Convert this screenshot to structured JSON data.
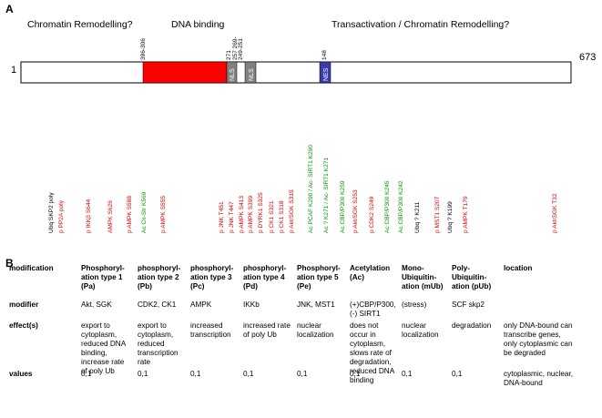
{
  "panel_a_label": "A",
  "panel_b_label": "B",
  "regions": [
    {
      "label": "Chromatin Remodelling?"
    },
    {
      "label": "DNA binding"
    },
    {
      "label": "Transactivation / Chromatin Remodelling?"
    }
  ],
  "protein": {
    "start": "1",
    "end": "673",
    "domains": [
      {
        "label": "",
        "color": "#ff0000"
      },
      {
        "label": "NLS",
        "color": "#808080"
      },
      {
        "label": "NLS",
        "color": "#808080"
      },
      {
        "label": "NES",
        "color": "#3a3aa8"
      }
    ],
    "position_labels": [
      "396-306",
      "271",
      "257 269-",
      "249-251",
      "148"
    ]
  },
  "sites": [
    {
      "label": "Ubq SKP2 poly",
      "color": "#000000"
    },
    {
      "label": "p PP2A poly",
      "color": "#e00000"
    },
    {
      "label": "p IKKβ S644",
      "color": "#e00000"
    },
    {
      "label": "AMPK S626",
      "color": "#e00000"
    },
    {
      "label": "p AMPK S588",
      "color": "#e00000"
    },
    {
      "label": "Ac Ck-Str K569",
      "color": "#009900"
    },
    {
      "label": "p AMPK S555",
      "color": "#e00000"
    },
    {
      "label": "p JNK T451",
      "color": "#e00000"
    },
    {
      "label": "p JNK T447",
      "color": "#e00000"
    },
    {
      "label": "p AMPK S413",
      "color": "#e00000"
    },
    {
      "label": "p AMPK S399",
      "color": "#e00000"
    },
    {
      "label": "p DYRK1 S325",
      "color": "#e00000"
    },
    {
      "label": "p CK1 S321",
      "color": "#e00000"
    },
    {
      "label": "p CK1 S318",
      "color": "#e00000"
    },
    {
      "label": "p Akt/SGK S315",
      "color": "#e00000"
    },
    {
      "label": "Ac PCAF K290 / Ac- SIRT1 K290",
      "color": "#009900"
    },
    {
      "label": "Ac ? K271 / Ac- SIRT1 K271",
      "color": "#009900"
    },
    {
      "label": "Ac CBP/P300 K259",
      "color": "#009900"
    },
    {
      "label": "p Akt/SGK S253",
      "color": "#e00000"
    },
    {
      "label": "p CDK2 S249",
      "color": "#e00000"
    },
    {
      "label": "Ac CBP/P300 K245",
      "color": "#009900"
    },
    {
      "label": "Ac CBP/P300 K242",
      "color": "#009900"
    },
    {
      "label": "Ubq ? K211",
      "color": "#000000"
    },
    {
      "label": "p MST1 S207",
      "color": "#e00000"
    },
    {
      "label": "Ubq ? K199",
      "color": "#000000"
    },
    {
      "label": "p AMPK T179",
      "color": "#e00000"
    },
    {
      "label": "p Akt/SGK T32",
      "color": "#e00000"
    }
  ],
  "table": {
    "headers": [
      "modification",
      "Phosphoryl-\nation type 1\n(Pa)",
      "phosphoryl-\nation type 2\n(Pb)",
      "phosphoryl-\nation type 3\n(Pc)",
      "phosphoryl-\nation type 4\n(Pd)",
      "Phosphoryl-\nation type 5\n(Pe)",
      "Acetylation\n(Ac)",
      "Mono-\nUbiquitin-\nation (mUb)",
      "Poly-\nUbiquitin-\nation (pUb)",
      "location"
    ],
    "rows": [
      {
        "label": "modifier",
        "cells": [
          "Akt, SGK",
          "CDK2, CK1",
          "AMPK",
          "IKKb",
          "JNK, MST1",
          "(+)CBP/P300,\n(-) SIRT1",
          "(stress)",
          "SCF skp2",
          ""
        ]
      },
      {
        "label": "effect(s)",
        "cells": [
          "export to\ncytoplasm,\nreduced DNA\nbinding,\nincrease rate\nof poly Ub",
          "export to\ncytoplasm,\nreduced\ntranscription\nrate",
          "increased\ntranscription",
          "increased rate\nof poly Ub",
          "nuclear\nlocalization",
          "does not\noccur in\ncytoplasm,\nslows rate of\ndegradation,\nreduced DNA\nbinding",
          "nuclear\nlocalization",
          "degradation",
          "only DNA-bound can\ntranscribe genes,\nonly cytoplasmic can\nbe degraded"
        ]
      },
      {
        "label": "values",
        "cells": [
          "0,1",
          "0,1",
          "0,1",
          "0,1",
          "0,1",
          "0,1",
          "0,1",
          "0,1",
          "cytoplasmic, nuclear,\nDNA-bound"
        ]
      }
    ]
  }
}
